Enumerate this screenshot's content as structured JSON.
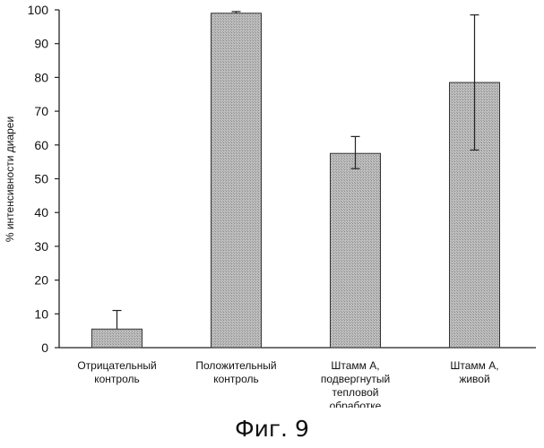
{
  "caption": "Фиг. 9",
  "chart_data": {
    "type": "bar",
    "ylabel": "% интенсивности диареи",
    "xlabel": "",
    "ylim": [
      0,
      100
    ],
    "yticks": [
      0,
      10,
      20,
      30,
      40,
      50,
      60,
      70,
      80,
      90,
      100
    ],
    "grid": false,
    "categories": [
      [
        "Отрицательный",
        "контроль"
      ],
      [
        "Положительный",
        "контроль"
      ],
      [
        "Штамм А,",
        "подвергнутый",
        "тепловой",
        "обработке"
      ],
      [
        "Штамм А,",
        "живой"
      ]
    ],
    "values": [
      5.5,
      99,
      57.5,
      78.5
    ],
    "error_upper": [
      11,
      99.5,
      62.5,
      98.5
    ],
    "error_lower": [
      5.5,
      99,
      53,
      58.5
    ],
    "bar_color": "#bdbdbd",
    "edge_color": "#333333"
  }
}
